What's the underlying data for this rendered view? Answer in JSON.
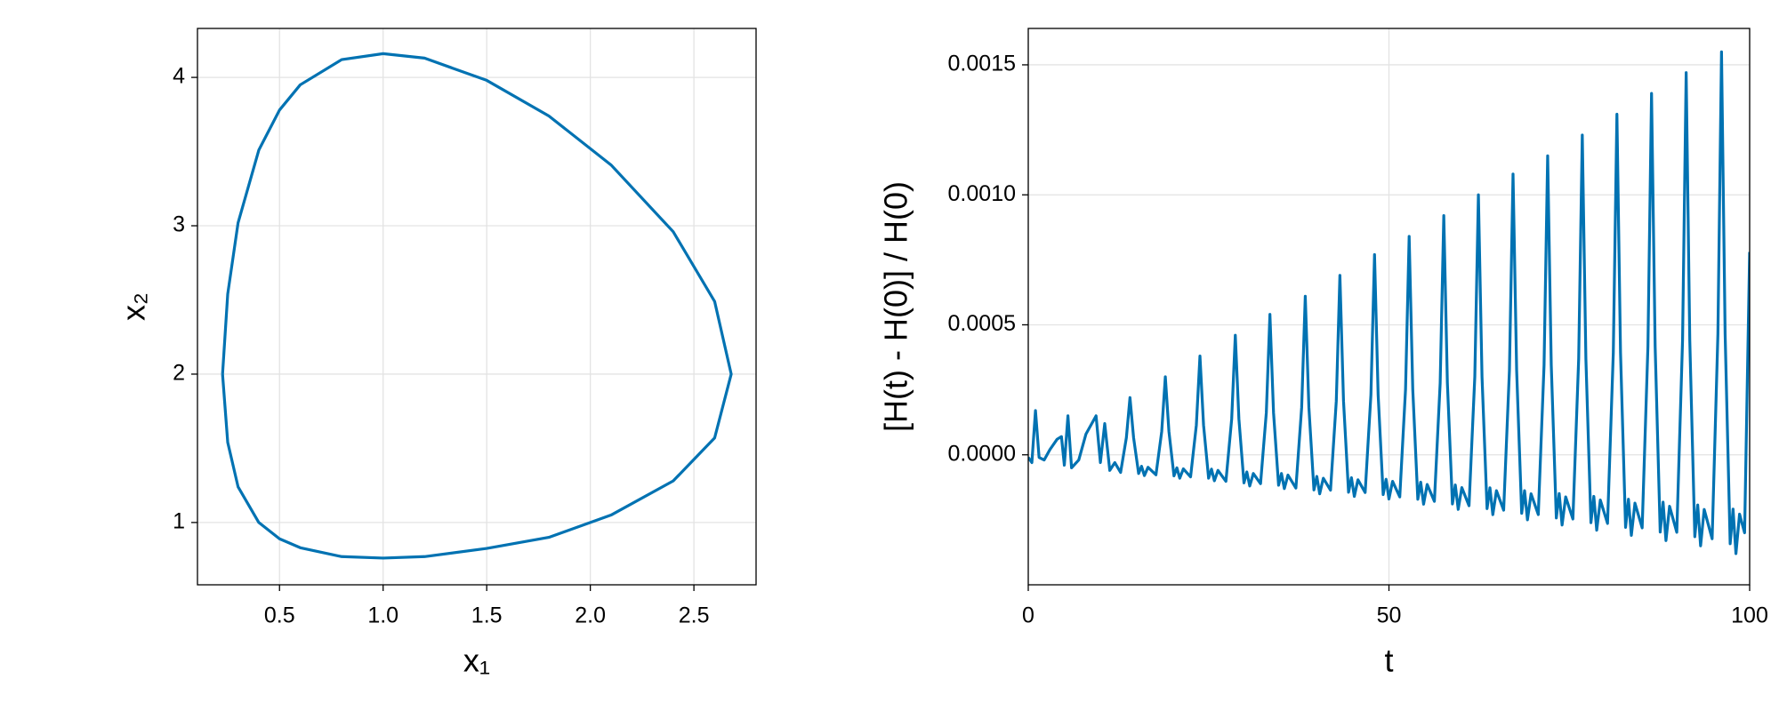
{
  "chart_data": [
    {
      "type": "line",
      "xlabel": "x₁",
      "ylabel": "x₂",
      "x": [
        0.225,
        0.25,
        0.3,
        0.4,
        0.5,
        0.6,
        0.8,
        1.0,
        1.2,
        1.5,
        1.8,
        2.1,
        2.4,
        2.6,
        2.68,
        2.6,
        2.4,
        2.1,
        1.8,
        1.5,
        1.2,
        1.0,
        0.8,
        0.6,
        0.5,
        0.4,
        0.3,
        0.25,
        0.225
      ],
      "series": [
        {
          "color": "#0072b2",
          "values": [
            2,
            1.54,
            1.24,
            1.0,
            0.89,
            0.83,
            0.77,
            0.76,
            0.77,
            0.825,
            0.9,
            1.05,
            1.28,
            1.57,
            2,
            2.49,
            2.96,
            3.41,
            3.74,
            3.98,
            4.13,
            4.16,
            4.12,
            3.95,
            3.78,
            3.51,
            3.02,
            2.54,
            2
          ]
        }
      ],
      "xlim": [
        0.104,
        2.8
      ],
      "ylim": [
        0.58,
        4.33
      ],
      "xticks": [
        0.5,
        {
          "value": 1,
          "label": "1.0"
        },
        1.5,
        {
          "value": 2,
          "label": "2.0"
        },
        2.5
      ],
      "yticks": [
        1,
        2,
        3,
        4
      ],
      "grid": true
    },
    {
      "type": "line",
      "xlabel": "t",
      "ylabel": "[H(t) - H(0)] / H(0)",
      "x": [
        0,
        0.5,
        1.0,
        1.5,
        2.2,
        3.0,
        4.0,
        4.6,
        5.0,
        5.5,
        6.0,
        7.0,
        8.0,
        9.4,
        10.0,
        10.6,
        11.3,
        12.0,
        12.8,
        13.6,
        14.1,
        14.6,
        15.3,
        15.7,
        16.1,
        16.6,
        17.7,
        18.5,
        19.0,
        19.5,
        20.2,
        20.6,
        21.0,
        21.5,
        22.5,
        23.3,
        23.8,
        24.3,
        25.0,
        25.4,
        25.8,
        26.3,
        27.4,
        28.2,
        28.7,
        29.2,
        29.9,
        30.3,
        30.7,
        31.2,
        32.2,
        33.0,
        33.5,
        34.0,
        34.7,
        35.1,
        35.5,
        36.0,
        37.1,
        37.9,
        38.4,
        38.9,
        39.6,
        40.0,
        40.4,
        40.9,
        41.9,
        42.7,
        43.2,
        43.7,
        44.4,
        44.8,
        45.2,
        45.7,
        46.7,
        47.5,
        48.0,
        48.5,
        49.2,
        49.6,
        50.0,
        50.5,
        51.5,
        52.3,
        52.8,
        53.3,
        54.0,
        54.4,
        54.8,
        55.3,
        56.3,
        57.1,
        57.6,
        58.1,
        58.8,
        59.2,
        59.6,
        60.1,
        61.1,
        61.9,
        62.4,
        62.9,
        63.6,
        64.0,
        64.4,
        64.9,
        65.9,
        66.7,
        67.2,
        67.7,
        68.4,
        68.8,
        69.2,
        69.7,
        70.7,
        71.5,
        72.0,
        72.5,
        73.2,
        73.6,
        74.0,
        74.5,
        75.5,
        76.3,
        76.8,
        77.3,
        78.0,
        78.4,
        78.8,
        79.3,
        80.3,
        81.1,
        81.6,
        82.1,
        82.8,
        83.2,
        83.6,
        84.1,
        85.1,
        85.9,
        86.4,
        86.9,
        87.6,
        88.0,
        88.4,
        88.9,
        89.9,
        90.7,
        91.2,
        91.7,
        92.4,
        92.8,
        93.2,
        93.7,
        94.8,
        95.6,
        96.1,
        96.6,
        97.3,
        97.7,
        98.1,
        98.6,
        99.3,
        100
      ],
      "series": [
        {
          "color": "#0072b2",
          "values": [
            -1e-05,
            -3e-05,
            0.00017,
            -1e-05,
            -2e-05,
            2e-05,
            6e-05,
            7e-05,
            -4e-05,
            0.00015,
            -5e-05,
            -2e-05,
            8e-05,
            0.00015,
            -3e-05,
            0.00012,
            -6e-05,
            -3e-05,
            -6.8e-05,
            6.6e-05,
            0.00022,
            6.6e-05,
            -7.2e-05,
            -4.4e-05,
            -8e-05,
            -4.8e-05,
            -7.7e-05,
            9e-05,
            0.0003,
            9e-05,
            -8.1e-05,
            -5e-05,
            -9e-05,
            -5.4e-05,
            -8.5e-05,
            0.000114,
            0.00038,
            0.000114,
            -9e-05,
            -5.5e-05,
            -0.0001,
            -6e-05,
            -0.000102,
            0.000138,
            0.00046,
            0.000138,
            -0.000108,
            -6.6e-05,
            -0.00012,
            -7.2e-05,
            -0.000111,
            0.000162,
            0.00054,
            0.000162,
            -0.000117,
            -7.2e-05,
            -0.00013,
            -7.8e-05,
            -0.000128,
            0.000183,
            0.00061,
            0.000183,
            -0.000135,
            -8.3e-05,
            -0.00015,
            -9e-05,
            -0.000136,
            0.000207,
            0.00069,
            0.000207,
            -0.000144,
            -8.8e-05,
            -0.00016,
            -9.6e-05,
            -0.000145,
            0.000231,
            0.00077,
            0.000231,
            -0.000153,
            -9.4e-05,
            -0.00017,
            -0.000102,
            -0.000162,
            0.000252,
            0.00084,
            0.000252,
            -0.000171,
            -0.000105,
            -0.00019,
            -0.000114,
            -0.000179,
            0.000276,
            0.00092,
            0.000276,
            -0.000189,
            -0.000116,
            -0.00021,
            -0.000126,
            -0.000196,
            0.0003,
            0.001,
            0.0003,
            -0.000207,
            -0.000127,
            -0.00023,
            -0.000138,
            -0.000213,
            0.000324,
            0.00108,
            0.000324,
            -0.000225,
            -0.000138,
            -0.00025,
            -0.00015,
            -0.00023,
            0.000345,
            0.00115,
            0.000345,
            -0.000243,
            -0.000149,
            -0.00027,
            -0.000162,
            -0.000247,
            0.000369,
            0.00123,
            0.000369,
            -0.000261,
            -0.00016,
            -0.00029,
            -0.000174,
            -0.000264,
            0.000393,
            0.00131,
            0.000393,
            -0.000279,
            -0.000171,
            -0.00031,
            -0.000186,
            -0.000281,
            0.000417,
            0.00139,
            0.000417,
            -0.000297,
            -0.000182,
            -0.00033,
            -0.000198,
            -0.000298,
            0.000441,
            0.00147,
            0.000441,
            -0.000315,
            -0.000193,
            -0.00035,
            -0.00021,
            -0.000323,
            0.000465,
            0.00155,
            0.000465,
            -0.000342,
            -0.000209,
            -0.00038,
            -0.000228,
            -0.0003,
            0.00078
          ]
        }
      ],
      "xlim": [
        0,
        100
      ],
      "ylim": [
        -0.0005,
        0.00164
      ],
      "xticks": [
        0,
        50,
        100
      ],
      "yticks": [
        {
          "value": 0,
          "label": "0.0000"
        },
        0.0005,
        {
          "value": 0.001,
          "label": "0.0010"
        },
        0.0015
      ],
      "grid": true
    }
  ]
}
